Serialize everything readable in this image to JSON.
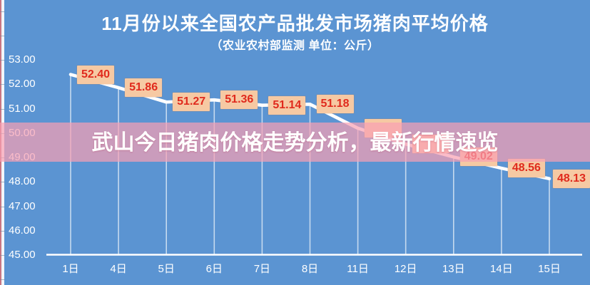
{
  "overlay_banner": {
    "text": "武山今日猪肉价格走势分析，最新行情速览"
  },
  "chart_data": {
    "type": "line",
    "title": "11月份以来全国农产品批发市场猪肉平均价格",
    "subtitle": "（农业农村部监测 单位：公斤）",
    "categories": [
      "1日",
      "4日",
      "5日",
      "6日",
      "7日",
      "8日",
      "11日",
      "12日",
      "13日",
      "14日",
      "15日"
    ],
    "series": [
      {
        "name": "猪肉平均价格",
        "values": [
          52.4,
          51.86,
          51.27,
          51.36,
          51.14,
          51.18,
          50.2,
          49.55,
          49.02,
          48.56,
          48.13
        ]
      }
    ],
    "point_labels": [
      "52.40",
      "51.86",
      "51.27",
      "51.36",
      "51.14",
      "51.18",
      "",
      "",
      "49.02",
      "48.56",
      "48.13"
    ],
    "obscured_point_label_indices": [
      6,
      7
    ],
    "estimated_value_indices": [
      6,
      7
    ],
    "y_ticks": [
      "53.00",
      "52.00",
      "51.00",
      "50.00",
      "49.00",
      "48.00",
      "47.00",
      "46.00",
      "45.00"
    ],
    "ylim": [
      45,
      53
    ],
    "xlabel": "",
    "ylabel": "",
    "grid": false,
    "legend": false,
    "colors": {
      "background": "#5b94d2",
      "line": "#ffffff",
      "drop_line": "rgba(255,255,255,0.65)",
      "label_box": "#f6c9a3",
      "label_text": "#e02a1d",
      "axis_text": "#ffffff",
      "banner_overlay": "rgba(250,160,178,0.70)",
      "banner_text": "#ffffff",
      "left_edge_stripe": "#c97582"
    }
  }
}
